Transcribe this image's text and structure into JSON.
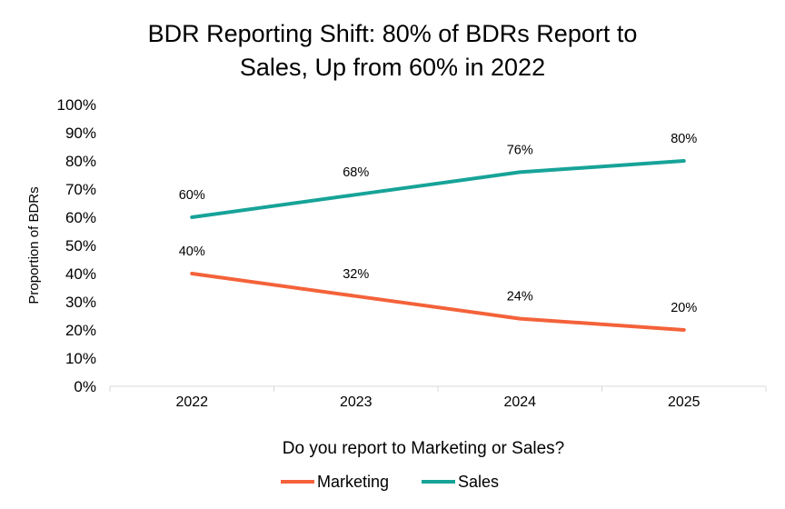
{
  "chart_data": {
    "type": "line",
    "title_lines": [
      "BDR Reporting Shift: 80% of BDRs Report to",
      "Sales, Up from 60% in 2022"
    ],
    "xlabel": "Do you report to Marketing or Sales?",
    "ylabel": "Proportion of BDRs",
    "categories": [
      "2022",
      "2023",
      "2024",
      "2025"
    ],
    "ylim": [
      0,
      100
    ],
    "yticks": [
      "0%",
      "10%",
      "20%",
      "30%",
      "40%",
      "50%",
      "60%",
      "70%",
      "80%",
      "90%",
      "100%"
    ],
    "grid": false,
    "legend_position": "bottom",
    "series": [
      {
        "name": "Marketing",
        "color": "#F4623A",
        "values": [
          40,
          32,
          24,
          20
        ],
        "labels": [
          "40%",
          "32%",
          "24%",
          "20%"
        ]
      },
      {
        "name": "Sales",
        "color": "#17A398",
        "values": [
          60,
          68,
          76,
          80
        ],
        "labels": [
          "60%",
          "68%",
          "76%",
          "80%"
        ]
      }
    ]
  }
}
